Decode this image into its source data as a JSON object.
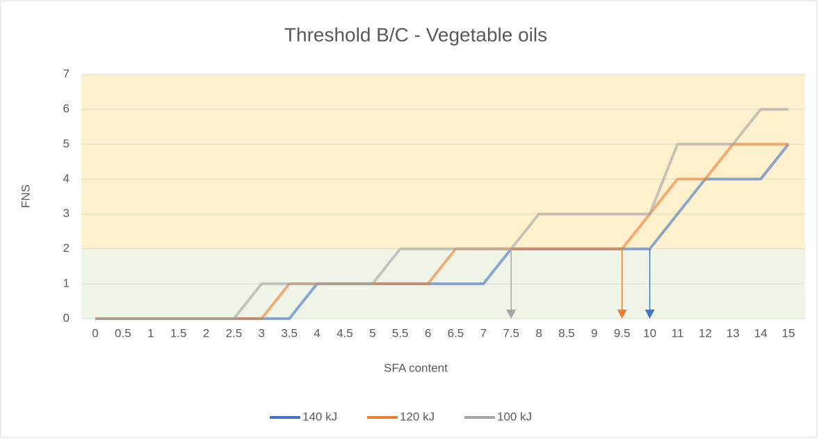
{
  "chart_data": {
    "type": "line",
    "title": "Threshold B/C - Vegetable oils",
    "x_label": "SFA content",
    "y_label": "FNS",
    "categories": [
      "0",
      "0.5",
      "1",
      "1.5",
      "2",
      "2.5",
      "3",
      "3.5",
      "4",
      "4.5",
      "5",
      "5.5",
      "6",
      "6.5",
      "7",
      "7.5",
      "8",
      "8.5",
      "9",
      "9.5",
      "10",
      "11",
      "12",
      "13",
      "14",
      "15"
    ],
    "series": [
      {
        "name": "140 kJ",
        "color": "#4472c4",
        "values": [
          0,
          0,
          0,
          0,
          0,
          0,
          0,
          0,
          1,
          1,
          1,
          1,
          1,
          1,
          1,
          2,
          2,
          2,
          2,
          2,
          2,
          3,
          4,
          4,
          4,
          5
        ]
      },
      {
        "name": "120 kJ",
        "color": "#ed7d31",
        "values": [
          0,
          0,
          0,
          0,
          0,
          0,
          0,
          1,
          1,
          1,
          1,
          1,
          1,
          2,
          2,
          2,
          2,
          2,
          2,
          2,
          3,
          4,
          4,
          5,
          5,
          5
        ]
      },
      {
        "name": "100 kJ",
        "color": "#a5a5a5",
        "values": [
          0,
          0,
          0,
          0,
          0,
          0,
          1,
          1,
          1,
          1,
          1,
          2,
          2,
          2,
          2,
          2,
          3,
          3,
          3,
          3,
          3,
          5,
          5,
          5,
          6,
          6
        ]
      }
    ],
    "ylim": [
      0,
      7
    ],
    "yticks": [
      0,
      1,
      2,
      3,
      4,
      5,
      6,
      7
    ],
    "grid": true,
    "legend": "bottom",
    "bands": [
      {
        "from": 0,
        "to": 2,
        "color": "#eef5e6"
      },
      {
        "from": 2,
        "to": 7,
        "color": "#fdf0cc"
      }
    ],
    "arrows": [
      {
        "x": "7.5",
        "from": 2,
        "to": 0,
        "color": "#a5a5a5"
      },
      {
        "x": "9.5",
        "from": 2,
        "to": 0,
        "color": "#ed7d31"
      },
      {
        "x": "10",
        "from": 2,
        "to": 0,
        "color": "#4472c4"
      }
    ]
  }
}
